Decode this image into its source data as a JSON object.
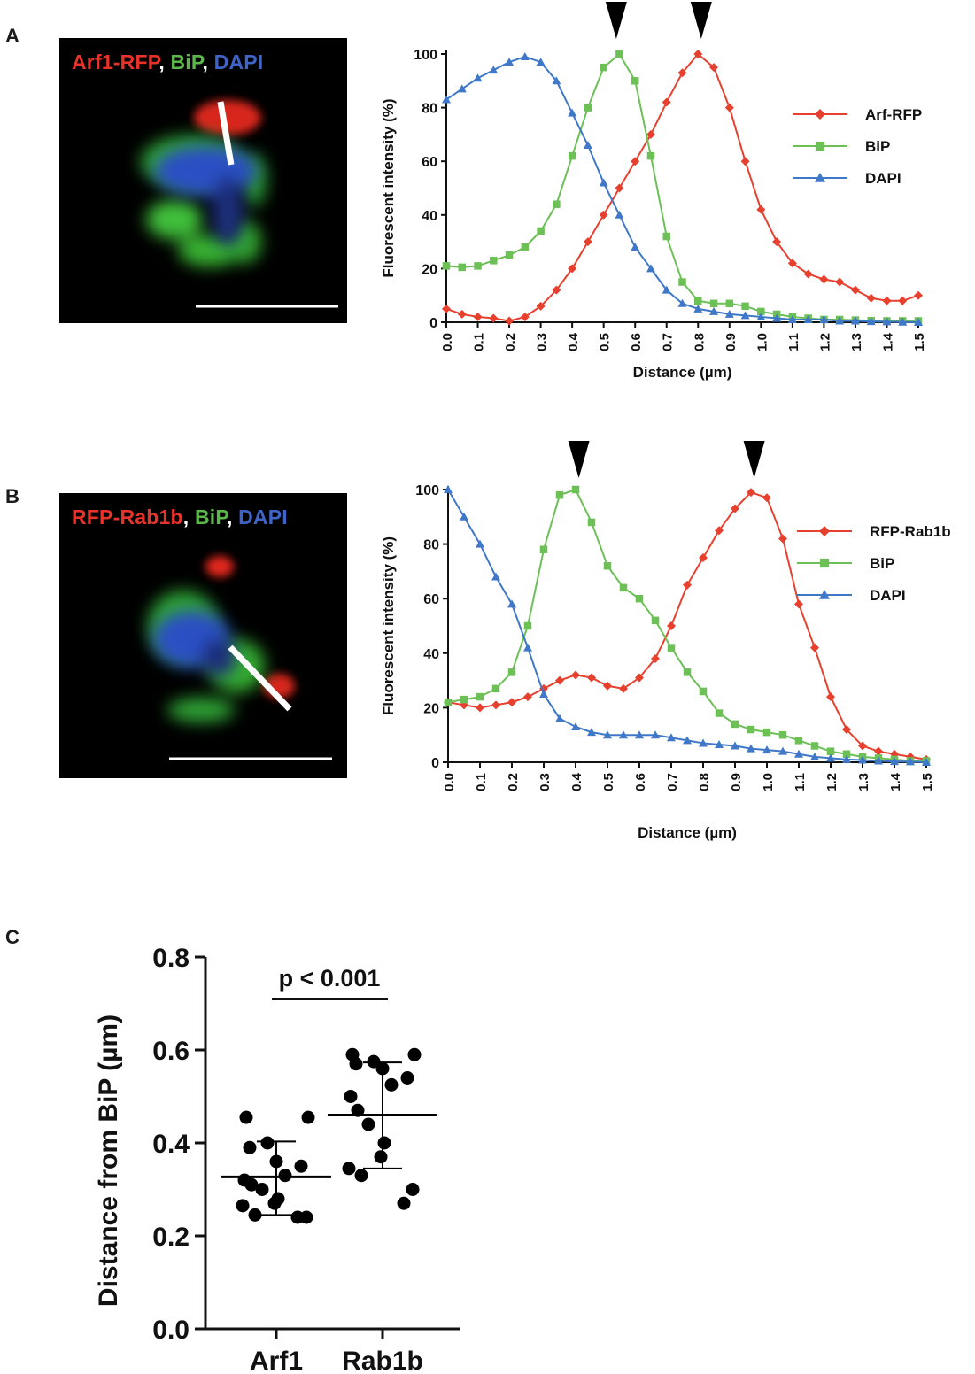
{
  "panels": {
    "a": {
      "letter": "A",
      "image_label": [
        {
          "text": "Arf1-RFP",
          "color": "#e8332a"
        },
        {
          "text": ", ",
          "color": "#ffffff"
        },
        {
          "text": "BiP",
          "color": "#5bb74a"
        },
        {
          "text": ", ",
          "color": "#ffffff"
        },
        {
          "text": "DAPI",
          "color": "#3d64c8"
        }
      ]
    },
    "b": {
      "letter": "B",
      "image_label": [
        {
          "text": "RFP-Rab1b",
          "color": "#e8332a"
        },
        {
          "text": ", ",
          "color": "#ffffff"
        },
        {
          "text": "BiP",
          "color": "#5bb74a"
        },
        {
          "text": ", ",
          "color": "#ffffff"
        },
        {
          "text": "DAPI",
          "color": "#3d64c8"
        }
      ]
    },
    "c": {
      "letter": "C"
    }
  },
  "colors": {
    "red": "#e8402e",
    "green": "#6cc056",
    "blue": "#3f78c8",
    "black": "#000000"
  },
  "chart_data": [
    {
      "type": "line",
      "panel": "A",
      "xlabel": "Distance (µm)",
      "ylabel": "Fluorescent intensity (%)",
      "xlim": [
        0,
        1.5
      ],
      "ylim": [
        0,
        100
      ],
      "xticks": [
        "0.0",
        "0.1",
        "0.2",
        "0.3",
        "0.4",
        "0.5",
        "0.6",
        "0.7",
        "0.8",
        "0.9",
        "1.0",
        "1.1",
        "1.2",
        "1.3",
        "1.4",
        "1.5"
      ],
      "yticks": [
        "0",
        "20",
        "40",
        "60",
        "80",
        "100"
      ],
      "arrowheads_x": [
        0.54,
        0.81
      ],
      "legend_position": "right",
      "series": [
        {
          "name": "Arf-RFP",
          "marker": "diamond",
          "color": "#e8402e",
          "x": [
            0,
            0.05,
            0.1,
            0.15,
            0.2,
            0.25,
            0.3,
            0.35,
            0.4,
            0.45,
            0.5,
            0.55,
            0.6,
            0.65,
            0.7,
            0.75,
            0.8,
            0.85,
            0.9,
            0.95,
            1.0,
            1.05,
            1.1,
            1.15,
            1.2,
            1.25,
            1.3,
            1.35,
            1.4,
            1.45,
            1.5
          ],
          "y": [
            5,
            3,
            2,
            1.5,
            0.5,
            2,
            6,
            12,
            20,
            30,
            40,
            50,
            60,
            70,
            82,
            93,
            100,
            95,
            80,
            60,
            42,
            30,
            22,
            18,
            16,
            15,
            12,
            9,
            8,
            8,
            10
          ]
        },
        {
          "name": "BiP",
          "marker": "square",
          "color": "#6cc056",
          "x": [
            0,
            0.05,
            0.1,
            0.15,
            0.2,
            0.25,
            0.3,
            0.35,
            0.4,
            0.45,
            0.5,
            0.55,
            0.6,
            0.65,
            0.7,
            0.75,
            0.8,
            0.85,
            0.9,
            0.95,
            1.0,
            1.05,
            1.1,
            1.15,
            1.2,
            1.25,
            1.3,
            1.35,
            1.4,
            1.45,
            1.5
          ],
          "y": [
            21,
            20.5,
            21,
            23,
            25,
            28,
            34,
            44,
            62,
            80,
            95,
            100,
            90,
            62,
            32,
            15,
            8,
            7,
            7,
            6,
            4,
            3,
            2,
            1.5,
            1,
            1,
            0.8,
            0.6,
            0.5,
            0.5,
            0.5
          ]
        },
        {
          "name": "DAPI",
          "marker": "triangle",
          "color": "#3f78c8",
          "x": [
            0,
            0.05,
            0.1,
            0.15,
            0.2,
            0.25,
            0.3,
            0.35,
            0.4,
            0.45,
            0.5,
            0.55,
            0.6,
            0.65,
            0.7,
            0.75,
            0.8,
            0.85,
            0.9,
            0.95,
            1.0,
            1.05,
            1.1,
            1.15,
            1.2,
            1.25,
            1.3,
            1.35,
            1.4,
            1.45,
            1.5
          ],
          "y": [
            83,
            87,
            91,
            94,
            97,
            99,
            97,
            90,
            78,
            66,
            52,
            40,
            28,
            20,
            12,
            7,
            5,
            4,
            3,
            2.5,
            2,
            1.5,
            1,
            1,
            1,
            0.5,
            0.5,
            0.3,
            0.2,
            0.1,
            0
          ]
        }
      ]
    },
    {
      "type": "line",
      "panel": "B",
      "xlabel": "Distance (µm)",
      "ylabel": "Fluorescent intensity (%)",
      "xlim": [
        0,
        1.5
      ],
      "ylim": [
        0,
        100
      ],
      "xticks": [
        "0.0",
        "0.1",
        "0.2",
        "0.3",
        "0.4",
        "0.5",
        "0.6",
        "0.7",
        "0.8",
        "0.9",
        "1.0",
        "1.1",
        "1.2",
        "1.3",
        "1.4",
        "1.5"
      ],
      "yticks": [
        "0",
        "20",
        "40",
        "60",
        "80",
        "100"
      ],
      "arrowheads_x": [
        0.41,
        0.96
      ],
      "legend_position": "right",
      "series": [
        {
          "name": "RFP-Rab1b",
          "marker": "diamond",
          "color": "#e8402e",
          "x": [
            0,
            0.05,
            0.1,
            0.15,
            0.2,
            0.25,
            0.3,
            0.35,
            0.4,
            0.45,
            0.5,
            0.55,
            0.6,
            0.65,
            0.7,
            0.75,
            0.8,
            0.85,
            0.9,
            0.95,
            1.0,
            1.05,
            1.1,
            1.15,
            1.2,
            1.25,
            1.3,
            1.35,
            1.4,
            1.45,
            1.5
          ],
          "y": [
            22,
            21,
            20,
            21,
            22,
            24,
            27,
            30,
            32,
            31,
            28,
            27,
            31,
            38,
            50,
            65,
            75,
            85,
            93,
            99,
            97,
            82,
            58,
            42,
            24,
            12,
            6,
            4,
            3,
            2,
            1
          ]
        },
        {
          "name": "BiP",
          "marker": "square",
          "color": "#6cc056",
          "x": [
            0,
            0.05,
            0.1,
            0.15,
            0.2,
            0.25,
            0.3,
            0.35,
            0.4,
            0.45,
            0.5,
            0.55,
            0.6,
            0.65,
            0.7,
            0.75,
            0.8,
            0.85,
            0.9,
            0.95,
            1.0,
            1.05,
            1.1,
            1.15,
            1.2,
            1.25,
            1.3,
            1.35,
            1.4,
            1.45,
            1.5
          ],
          "y": [
            22,
            23,
            24,
            27,
            33,
            50,
            78,
            98,
            100,
            88,
            72,
            64,
            60,
            52,
            42,
            33,
            26,
            18,
            14,
            12,
            11,
            10,
            8,
            6,
            4,
            3,
            2,
            1.5,
            1,
            0.5,
            0.5
          ]
        },
        {
          "name": "DAPI",
          "marker": "triangle",
          "color": "#3f78c8",
          "x": [
            0,
            0.05,
            0.1,
            0.15,
            0.2,
            0.25,
            0.3,
            0.35,
            0.4,
            0.45,
            0.5,
            0.55,
            0.6,
            0.65,
            0.7,
            0.75,
            0.8,
            0.85,
            0.9,
            0.95,
            1.0,
            1.05,
            1.1,
            1.15,
            1.2,
            1.25,
            1.3,
            1.35,
            1.4,
            1.45,
            1.5
          ],
          "y": [
            100,
            90,
            80,
            68,
            58,
            42,
            25,
            16,
            13,
            11,
            10,
            10,
            10,
            10,
            9,
            8,
            7,
            6.5,
            6,
            5,
            4.5,
            4,
            3,
            2,
            1.5,
            1,
            0.8,
            0.5,
            0.3,
            0.2,
            0
          ]
        }
      ]
    },
    {
      "type": "scatter",
      "panel": "C",
      "ylabel": "Distance from BiP (µm)",
      "categories": [
        "Arf1",
        "Rab1b"
      ],
      "ylim": [
        0,
        0.8
      ],
      "yticks": [
        "0.0",
        "0.2",
        "0.4",
        "0.6",
        "0.8"
      ],
      "significance": "p < 0.001",
      "groups": [
        {
          "name": "Arf1",
          "mean": 0.327,
          "sd_low": 0.245,
          "sd_high": 0.403,
          "points": [
            0.455,
            0.455,
            0.4,
            0.39,
            0.36,
            0.35,
            0.33,
            0.32,
            0.31,
            0.3,
            0.28,
            0.27,
            0.265,
            0.245,
            0.24,
            0.24
          ]
        },
        {
          "name": "Rab1b",
          "mean": 0.46,
          "sd_low": 0.345,
          "sd_high": 0.573,
          "points": [
            0.59,
            0.59,
            0.575,
            0.57,
            0.56,
            0.54,
            0.525,
            0.5,
            0.47,
            0.44,
            0.4,
            0.37,
            0.345,
            0.33,
            0.3,
            0.27
          ]
        }
      ]
    }
  ]
}
